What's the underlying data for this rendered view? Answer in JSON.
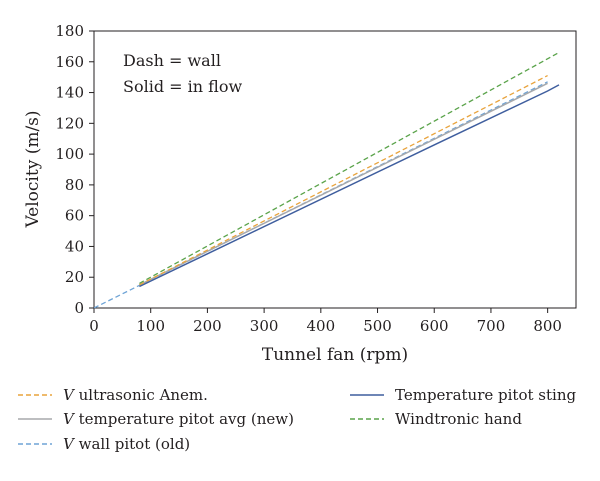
{
  "chart_data": {
    "type": "line",
    "xlabel": "Tunnel fan (rpm)",
    "ylabel": "Velocity (m/s)",
    "xlim": [
      0,
      850
    ],
    "ylim": [
      0,
      180
    ],
    "xticks": [
      0,
      100,
      200,
      300,
      400,
      500,
      600,
      700,
      800
    ],
    "yticks": [
      0,
      20,
      40,
      60,
      80,
      100,
      120,
      140,
      160,
      180
    ],
    "grid": false,
    "legend_position": "below-plot",
    "annotations": [
      "Dash = wall",
      "Solid = in flow"
    ],
    "series": [
      {
        "name_prefix": "V",
        "name_rest": " ultrasonic Anem.",
        "style": "dashed",
        "color": "#e8a33c",
        "x": [
          80,
          800
        ],
        "y": [
          15,
          151
        ]
      },
      {
        "name_prefix": "V",
        "name_rest": " temperature pitot avg (new)",
        "style": "solid",
        "color": "#a7a9ac",
        "x": [
          80,
          800
        ],
        "y": [
          15,
          146
        ]
      },
      {
        "name_prefix": "V",
        "name_rest": " wall pitot (old)",
        "style": "dashed",
        "color": "#6fa4d6",
        "x": [
          0,
          800
        ],
        "y": [
          0,
          147
        ]
      },
      {
        "name_prefix": "",
        "name_rest": "Temperature pitot sting",
        "style": "solid",
        "color": "#3f5e9e",
        "x": [
          80,
          600,
          800,
          815,
          820
        ],
        "y": [
          14,
          106,
          141,
          144,
          145
        ]
      },
      {
        "name_prefix": "",
        "name_rest": "Windtronic hand",
        "style": "dashed",
        "color": "#5aa34a",
        "x": [
          80,
          820
        ],
        "y": [
          16,
          166
        ]
      }
    ]
  }
}
